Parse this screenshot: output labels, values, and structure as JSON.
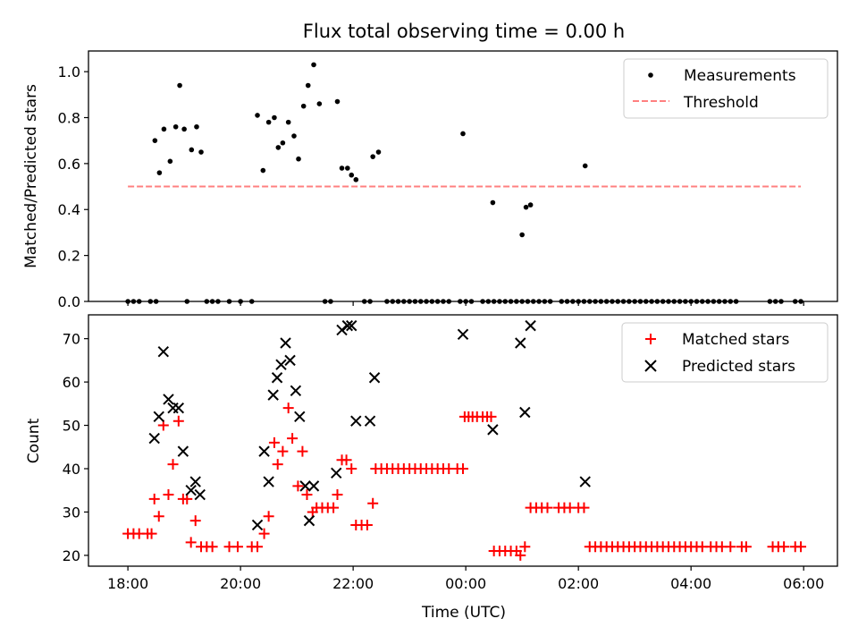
{
  "chart_data": [
    {
      "type": "scatter",
      "title": "Flux total observing time = 0.00 h",
      "xlabel": "",
      "ylabel": "Matched/Predicted stars",
      "xlim": [
        -0.7,
        12.6
      ],
      "ylim": [
        0.0,
        1.09
      ],
      "yticks": [
        0.0,
        0.2,
        0.4,
        0.6,
        0.8,
        1.0
      ],
      "ytick_labels": [
        "0.0",
        "0.2",
        "0.4",
        "0.6",
        "0.8",
        "1.0"
      ],
      "legend": [
        "Measurements",
        "Threshold"
      ],
      "legend_position": "top-right",
      "threshold": {
        "name": "Threshold",
        "value": 0.5,
        "x_range": [
          0.0,
          11.95
        ],
        "color": "#ff8080",
        "style": "dashed"
      },
      "series": [
        {
          "name": "Measurements",
          "color": "#000000",
          "points": [
            [
              0.0,
              0
            ],
            [
              0.1,
              0
            ],
            [
              0.2,
              0
            ],
            [
              0.4,
              0
            ],
            [
              0.5,
              0
            ],
            [
              0.48,
              0.7
            ],
            [
              0.56,
              0.56
            ],
            [
              0.64,
              0.75
            ],
            [
              0.75,
              0.61
            ],
            [
              0.85,
              0.76
            ],
            [
              0.92,
              0.94
            ],
            [
              1.0,
              0.75
            ],
            [
              1.05,
              0
            ],
            [
              1.13,
              0.66
            ],
            [
              1.22,
              0.76
            ],
            [
              1.3,
              0.65
            ],
            [
              1.4,
              0
            ],
            [
              1.5,
              0
            ],
            [
              1.6,
              0
            ],
            [
              1.8,
              0
            ],
            [
              2.0,
              0
            ],
            [
              2.2,
              0
            ],
            [
              2.3,
              0.81
            ],
            [
              2.4,
              0.57
            ],
            [
              2.5,
              0.78
            ],
            [
              2.6,
              0.8
            ],
            [
              2.67,
              0.67
            ],
            [
              2.75,
              0.69
            ],
            [
              2.85,
              0.78
            ],
            [
              2.95,
              0.72
            ],
            [
              3.03,
              0.62
            ],
            [
              3.12,
              0.85
            ],
            [
              3.2,
              0.94
            ],
            [
              3.3,
              1.03
            ],
            [
              3.4,
              0.86
            ],
            [
              3.5,
              0
            ],
            [
              3.6,
              0
            ],
            [
              3.72,
              0.87
            ],
            [
              3.8,
              0.58
            ],
            [
              3.9,
              0.58
            ],
            [
              3.97,
              0.55
            ],
            [
              4.05,
              0.53
            ],
            [
              4.2,
              0
            ],
            [
              4.3,
              0
            ],
            [
              4.35,
              0.63
            ],
            [
              4.45,
              0.65
            ],
            [
              4.6,
              0
            ],
            [
              4.7,
              0
            ],
            [
              4.8,
              0
            ],
            [
              4.9,
              0
            ],
            [
              5.0,
              0
            ],
            [
              5.1,
              0
            ],
            [
              5.2,
              0
            ],
            [
              5.3,
              0
            ],
            [
              5.4,
              0
            ],
            [
              5.5,
              0
            ],
            [
              5.6,
              0
            ],
            [
              5.7,
              0
            ],
            [
              5.9,
              0
            ],
            [
              6.0,
              0
            ],
            [
              6.1,
              0
            ],
            [
              5.95,
              0.73
            ],
            [
              6.3,
              0
            ],
            [
              6.4,
              0
            ],
            [
              6.5,
              0
            ],
            [
              6.6,
              0
            ],
            [
              6.7,
              0
            ],
            [
              6.8,
              0
            ],
            [
              6.9,
              0
            ],
            [
              7.0,
              0
            ],
            [
              7.1,
              0
            ],
            [
              7.2,
              0
            ],
            [
              7.3,
              0
            ],
            [
              7.4,
              0
            ],
            [
              7.5,
              0
            ],
            [
              6.48,
              0.43
            ],
            [
              7.0,
              0.29
            ],
            [
              7.07,
              0.41
            ],
            [
              7.15,
              0.42
            ],
            [
              7.7,
              0
            ],
            [
              7.8,
              0
            ],
            [
              7.9,
              0
            ],
            [
              8.0,
              0
            ],
            [
              8.1,
              0
            ],
            [
              8.2,
              0
            ],
            [
              8.3,
              0
            ],
            [
              8.4,
              0
            ],
            [
              8.5,
              0
            ],
            [
              8.6,
              0
            ],
            [
              8.7,
              0
            ],
            [
              8.8,
              0
            ],
            [
              8.9,
              0
            ],
            [
              8.12,
              0.59
            ],
            [
              9.0,
              0
            ],
            [
              9.1,
              0
            ],
            [
              9.2,
              0
            ],
            [
              9.3,
              0
            ],
            [
              9.4,
              0
            ],
            [
              9.5,
              0
            ],
            [
              9.6,
              0
            ],
            [
              9.7,
              0
            ],
            [
              9.8,
              0
            ],
            [
              9.9,
              0
            ],
            [
              10.0,
              0
            ],
            [
              10.1,
              0
            ],
            [
              10.2,
              0
            ],
            [
              10.3,
              0
            ],
            [
              10.4,
              0
            ],
            [
              10.5,
              0
            ],
            [
              10.6,
              0
            ],
            [
              10.7,
              0
            ],
            [
              10.8,
              0
            ],
            [
              11.4,
              0
            ],
            [
              11.5,
              0
            ],
            [
              11.6,
              0
            ],
            [
              11.85,
              0
            ],
            [
              11.95,
              0
            ]
          ]
        }
      ]
    },
    {
      "type": "scatter",
      "title": "",
      "xlabel": "Time (UTC)",
      "ylabel": "Count",
      "xlim": [
        -0.7,
        12.6
      ],
      "ylim": [
        17.5,
        75.5
      ],
      "xticks": [
        0,
        2,
        4,
        6,
        8,
        10,
        12
      ],
      "xtick_labels": [
        "18:00",
        "20:00",
        "22:00",
        "00:00",
        "02:00",
        "04:00",
        "06:00"
      ],
      "yticks": [
        20,
        30,
        40,
        50,
        60,
        70
      ],
      "ytick_labels": [
        "20",
        "30",
        "40",
        "50",
        "60",
        "70"
      ],
      "legend": [
        "Matched stars",
        "Predicted stars"
      ],
      "legend_position": "top-right",
      "series": [
        {
          "name": "Matched stars",
          "color": "#ff0000",
          "marker": "+",
          "points": [
            [
              0.0,
              25
            ],
            [
              0.1,
              25
            ],
            [
              0.2,
              25
            ],
            [
              0.35,
              25
            ],
            [
              0.42,
              25
            ],
            [
              0.47,
              33
            ],
            [
              0.55,
              29
            ],
            [
              0.63,
              50
            ],
            [
              0.72,
              34
            ],
            [
              0.8,
              41
            ],
            [
              0.9,
              51
            ],
            [
              0.98,
              33
            ],
            [
              1.05,
              33
            ],
            [
              1.12,
              23
            ],
            [
              1.2,
              28
            ],
            [
              1.3,
              22
            ],
            [
              1.4,
              22
            ],
            [
              1.5,
              22
            ],
            [
              1.8,
              22
            ],
            [
              1.95,
              22
            ],
            [
              2.2,
              22
            ],
            [
              2.3,
              22
            ],
            [
              2.42,
              25
            ],
            [
              2.5,
              29
            ],
            [
              2.6,
              46
            ],
            [
              2.66,
              41
            ],
            [
              2.75,
              44
            ],
            [
              2.85,
              54
            ],
            [
              2.92,
              47
            ],
            [
              3.02,
              36
            ],
            [
              3.1,
              44
            ],
            [
              3.18,
              34
            ],
            [
              3.28,
              30
            ],
            [
              3.35,
              31
            ],
            [
              3.45,
              31
            ],
            [
              3.55,
              31
            ],
            [
              3.65,
              31
            ],
            [
              3.72,
              34
            ],
            [
              3.8,
              42
            ],
            [
              3.88,
              42
            ],
            [
              3.97,
              40
            ],
            [
              4.05,
              27
            ],
            [
              4.15,
              27
            ],
            [
              4.25,
              27
            ],
            [
              4.35,
              32
            ],
            [
              4.4,
              40
            ],
            [
              4.5,
              40
            ],
            [
              4.6,
              40
            ],
            [
              4.7,
              40
            ],
            [
              4.8,
              40
            ],
            [
              4.9,
              40
            ],
            [
              5.0,
              40
            ],
            [
              5.1,
              40
            ],
            [
              5.2,
              40
            ],
            [
              5.3,
              40
            ],
            [
              5.4,
              40
            ],
            [
              5.5,
              40
            ],
            [
              5.6,
              40
            ],
            [
              5.7,
              40
            ],
            [
              5.85,
              40
            ],
            [
              5.95,
              40
            ],
            [
              5.98,
              52
            ],
            [
              6.05,
              52
            ],
            [
              6.12,
              52
            ],
            [
              6.2,
              52
            ],
            [
              6.3,
              52
            ],
            [
              6.38,
              52
            ],
            [
              6.45,
              52
            ],
            [
              6.5,
              21
            ],
            [
              6.6,
              21
            ],
            [
              6.7,
              21
            ],
            [
              6.8,
              21
            ],
            [
              6.9,
              21
            ],
            [
              6.97,
              20
            ],
            [
              7.05,
              22
            ],
            [
              7.15,
              31
            ],
            [
              7.25,
              31
            ],
            [
              7.35,
              31
            ],
            [
              7.45,
              31
            ],
            [
              7.65,
              31
            ],
            [
              7.75,
              31
            ],
            [
              7.85,
              31
            ],
            [
              8.0,
              31
            ],
            [
              8.1,
              31
            ],
            [
              8.2,
              22
            ],
            [
              8.3,
              22
            ],
            [
              8.4,
              22
            ],
            [
              8.5,
              22
            ],
            [
              8.6,
              22
            ],
            [
              8.7,
              22
            ],
            [
              8.8,
              22
            ],
            [
              8.9,
              22
            ],
            [
              9.0,
              22
            ],
            [
              9.1,
              22
            ],
            [
              9.2,
              22
            ],
            [
              9.3,
              22
            ],
            [
              9.4,
              22
            ],
            [
              9.5,
              22
            ],
            [
              9.6,
              22
            ],
            [
              9.7,
              22
            ],
            [
              9.8,
              22
            ],
            [
              9.9,
              22
            ],
            [
              10.0,
              22
            ],
            [
              10.1,
              22
            ],
            [
              10.2,
              22
            ],
            [
              10.35,
              22
            ],
            [
              10.45,
              22
            ],
            [
              10.55,
              22
            ],
            [
              10.7,
              22
            ],
            [
              10.9,
              22
            ],
            [
              10.98,
              22
            ],
            [
              11.45,
              22
            ],
            [
              11.55,
              22
            ],
            [
              11.65,
              22
            ],
            [
              11.85,
              22
            ],
            [
              11.95,
              22
            ]
          ]
        },
        {
          "name": "Predicted stars",
          "color": "#000000",
          "marker": "x",
          "points": [
            [
              0.47,
              47
            ],
            [
              0.55,
              52
            ],
            [
              0.63,
              67
            ],
            [
              0.72,
              56
            ],
            [
              0.8,
              54
            ],
            [
              0.9,
              54
            ],
            [
              0.98,
              44
            ],
            [
              1.12,
              35
            ],
            [
              1.2,
              37
            ],
            [
              1.28,
              34
            ],
            [
              2.3,
              27
            ],
            [
              2.42,
              44
            ],
            [
              2.5,
              37
            ],
            [
              2.58,
              57
            ],
            [
              2.65,
              61
            ],
            [
              2.72,
              64
            ],
            [
              2.8,
              69
            ],
            [
              2.88,
              65
            ],
            [
              2.98,
              58
            ],
            [
              3.05,
              52
            ],
            [
              3.15,
              36
            ],
            [
              3.22,
              28
            ],
            [
              3.3,
              36
            ],
            [
              3.7,
              39
            ],
            [
              3.8,
              72
            ],
            [
              3.9,
              73
            ],
            [
              3.97,
              73
            ],
            [
              4.05,
              51
            ],
            [
              4.3,
              51
            ],
            [
              4.38,
              61
            ],
            [
              5.95,
              71
            ],
            [
              6.48,
              49
            ],
            [
              6.97,
              69
            ],
            [
              7.05,
              53
            ],
            [
              7.15,
              73
            ],
            [
              8.12,
              37
            ]
          ]
        }
      ]
    }
  ]
}
